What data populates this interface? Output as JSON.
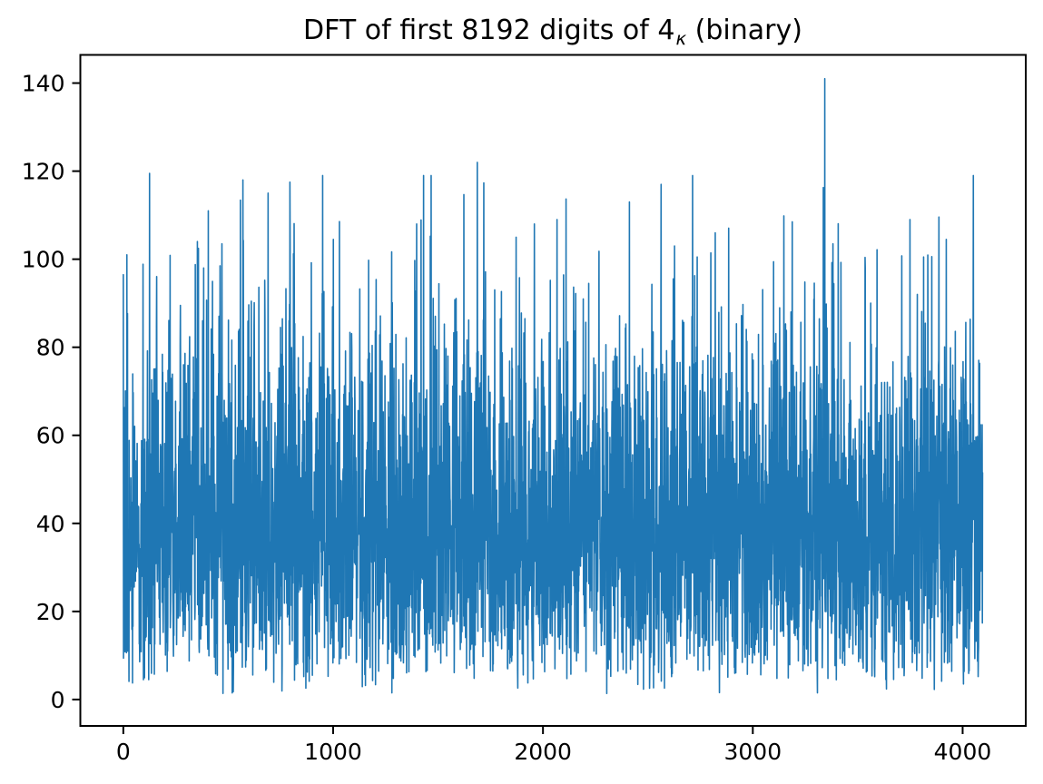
{
  "figure": {
    "title": {
      "pre": "DFT of first 8192 digits of 4",
      "sub": "κ",
      "post": " (binary)"
    },
    "background_color": "#ffffff",
    "axis_color": "#000000"
  },
  "chart_data": {
    "type": "line",
    "title": "DFT of first 8192 digits of 4κ (binary)",
    "xlabel": "",
    "ylabel": "",
    "legend": null,
    "grid": false,
    "line_color": "#1f77b4",
    "x_ticks": [
      0,
      1000,
      2000,
      3000,
      4000
    ],
    "y_ticks": [
      0,
      20,
      40,
      60,
      80,
      100,
      120,
      140
    ],
    "xlim": [
      -204.8,
      4300.8
    ],
    "ylim": [
      -6.0,
      146.4
    ],
    "n_points": 4096,
    "x_start": 0,
    "x_step": 1,
    "description": "Magnitude spectrum of DFT of 8192 binary digits; 4096 frequency bins of noise-like Rayleigh-distributed magnitudes, dense band roughly 15-65 with spikes to 141",
    "noise_model": {
      "kind": "rayleigh",
      "sigma": 32,
      "seed": 77,
      "clip_min": 0.8,
      "clip_max": 119
    },
    "notable_peaks": [
      {
        "x": 0,
        "y": 96.5
      },
      {
        "x": 17,
        "y": 101
      },
      {
        "x": 125,
        "y": 119.5
      },
      {
        "x": 405,
        "y": 111
      },
      {
        "x": 470,
        "y": 103.5
      },
      {
        "x": 570,
        "y": 118
      },
      {
        "x": 690,
        "y": 115
      },
      {
        "x": 794,
        "y": 117.5
      },
      {
        "x": 1001,
        "y": 104.5
      },
      {
        "x": 1398,
        "y": 108
      },
      {
        "x": 1687,
        "y": 122
      },
      {
        "x": 1872,
        "y": 105
      },
      {
        "x": 1959,
        "y": 108
      },
      {
        "x": 2067,
        "y": 109
      },
      {
        "x": 2218,
        "y": 94.5
      },
      {
        "x": 2412,
        "y": 113
      },
      {
        "x": 2563,
        "y": 117
      },
      {
        "x": 2627,
        "y": 103
      },
      {
        "x": 2735,
        "y": 100.5
      },
      {
        "x": 2821,
        "y": 106
      },
      {
        "x": 3188,
        "y": 108.5
      },
      {
        "x": 3343,
        "y": 141
      },
      {
        "x": 3382,
        "y": 103.5
      },
      {
        "x": 3749,
        "y": 109
      },
      {
        "x": 3814,
        "y": 100.5
      },
      {
        "x": 3922,
        "y": 104.5
      },
      {
        "x": 4051,
        "y": 119
      }
    ]
  }
}
